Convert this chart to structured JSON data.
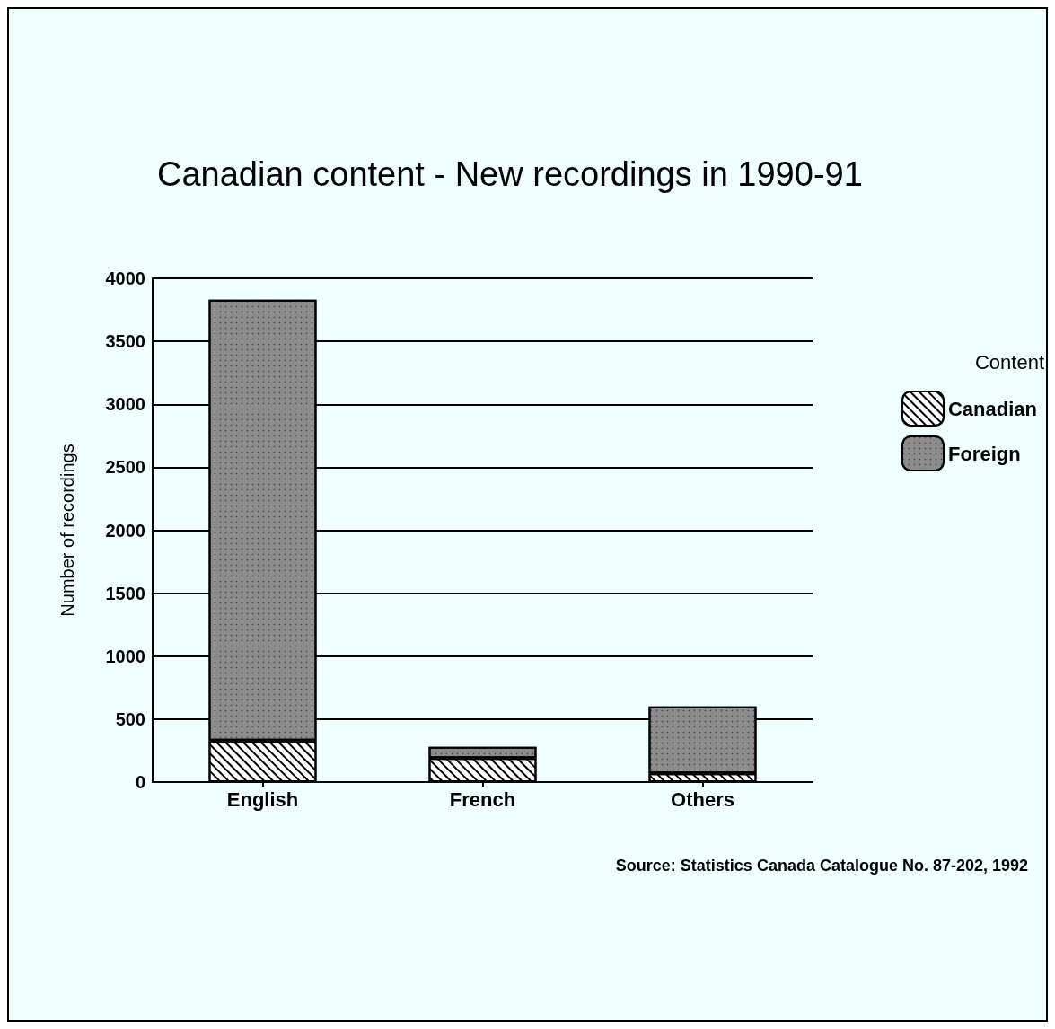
{
  "chart_data": {
    "type": "bar",
    "title": "Canadian content - New recordings in 1990-91",
    "ylabel": "Number of recordings",
    "legend_title": "Content",
    "categories": [
      "English",
      "French",
      "Others"
    ],
    "stacked": true,
    "series": [
      {
        "name": "Canadian",
        "color": "#ffffff",
        "values": [
          330,
          190,
          70
        ]
      },
      {
        "name": "Foreign",
        "color": "#8c8c8c",
        "values": [
          3500,
          90,
          530
        ]
      }
    ],
    "ylim": [
      0,
      4000
    ],
    "yticks": [
      0,
      500,
      1000,
      1500,
      2000,
      2500,
      3000,
      3500,
      4000
    ],
    "grid": "y",
    "legend": "right",
    "annotations": [
      "Source: Statistics Canada Catalogue No. 87-202, 1992"
    ]
  }
}
